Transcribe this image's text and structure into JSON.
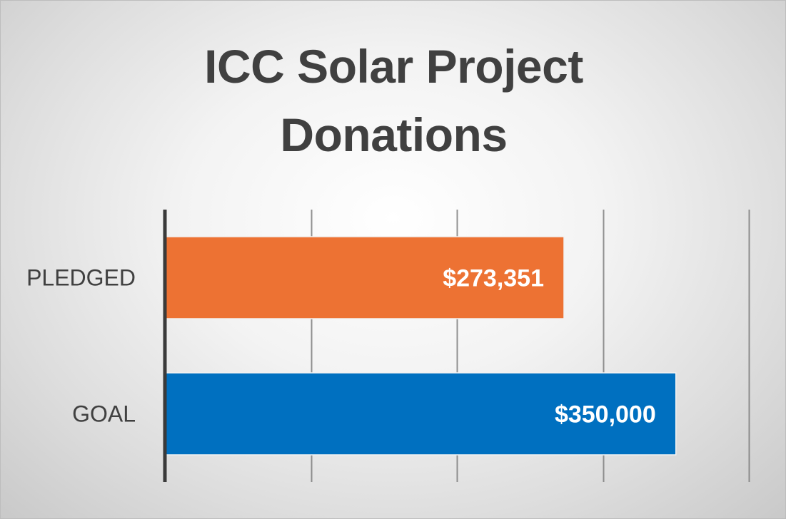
{
  "chart_data": {
    "type": "bar",
    "orientation": "horizontal",
    "title_lines": [
      "ICC Solar Project",
      "Donations"
    ],
    "categories": [
      "PLEDGED",
      "GOAL"
    ],
    "values": [
      273351,
      350000
    ],
    "data_labels": [
      "$273,351",
      "$350,000"
    ],
    "colors": [
      "#ED7233",
      "#0070C0"
    ],
    "xlim": [
      0,
      400000
    ],
    "gridline_values": [
      100000,
      200000,
      300000,
      400000
    ],
    "grid": true,
    "legend": "none",
    "xlabel": "",
    "ylabel": ""
  }
}
